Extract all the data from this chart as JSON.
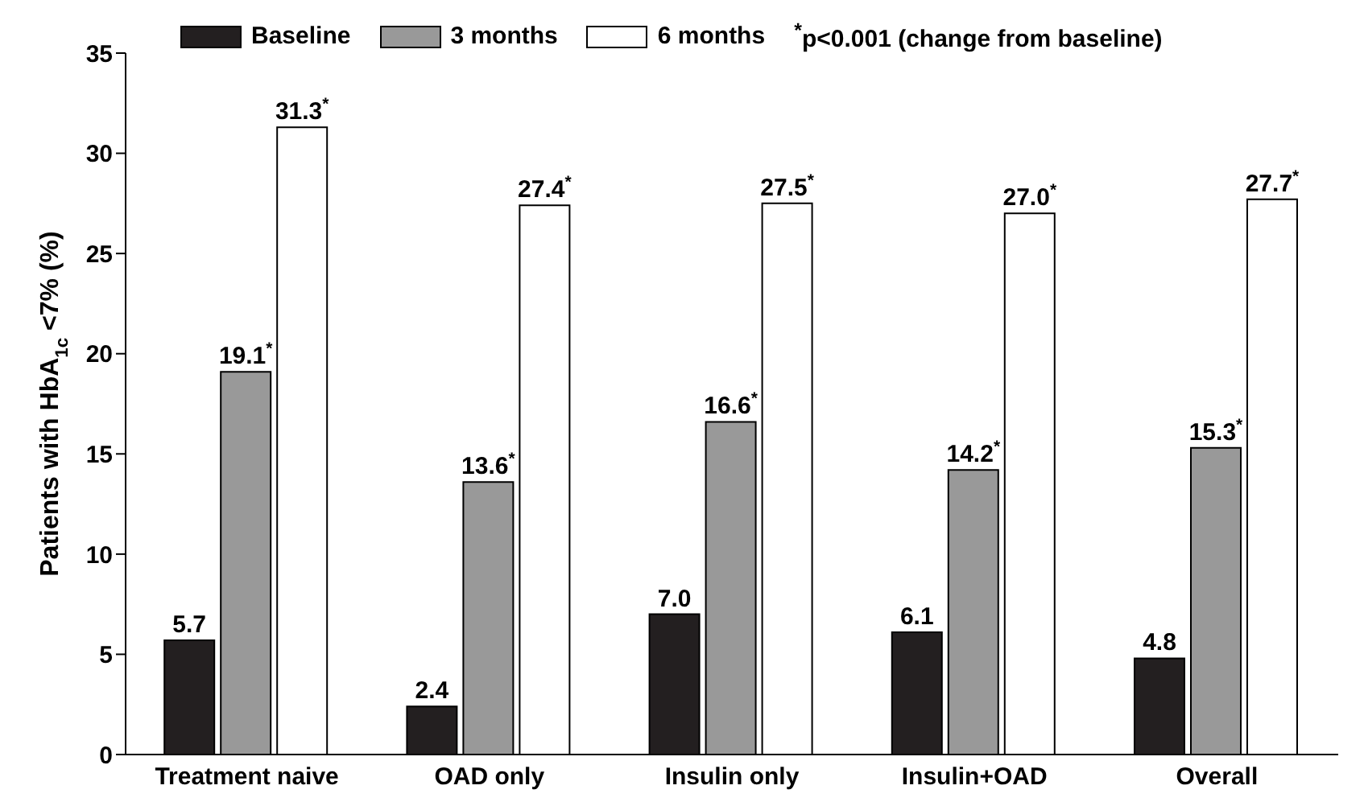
{
  "chart_data": {
    "type": "bar",
    "ylabel": "Patients with HbA$_{1c}$<7% (%)",
    "categories": [
      "Treatment naive",
      "OAD only",
      "Insulin only",
      "Insulin+OAD",
      "Overall"
    ],
    "series": [
      {
        "name": "Baseline",
        "color": "#231f20",
        "values": [
          5.7,
          2.4,
          7.0,
          6.1,
          4.8
        ],
        "value_labels": [
          "5.7",
          "2.4",
          "7.0",
          "6.1",
          "4.8"
        ]
      },
      {
        "name": "3 months",
        "color": "#999999",
        "values": [
          19.1,
          13.6,
          16.6,
          14.2,
          15.3
        ],
        "value_labels": [
          "19.1$^{*}$",
          "13.6$^{*}$",
          "16.6$^{*}$",
          "14.2$^{*}$",
          "15.3$^{*}$"
        ]
      },
      {
        "name": "6 months",
        "color": "#ffffff",
        "values": [
          31.3,
          27.4,
          27.5,
          27.0,
          27.7
        ],
        "value_labels": [
          "31.3$^{*}$",
          "27.4$^{*}$",
          "27.5$^{*}$",
          "27.0$^{*}$",
          "27.7$^{*}$"
        ]
      }
    ],
    "annotations": [
      "$^{*}$p<0.001 (change from baseline)"
    ],
    "ylim": [
      0,
      35
    ],
    "yticks": [
      0,
      5,
      10,
      15,
      20,
      25,
      30,
      35
    ],
    "grid": false,
    "legend": "top"
  }
}
